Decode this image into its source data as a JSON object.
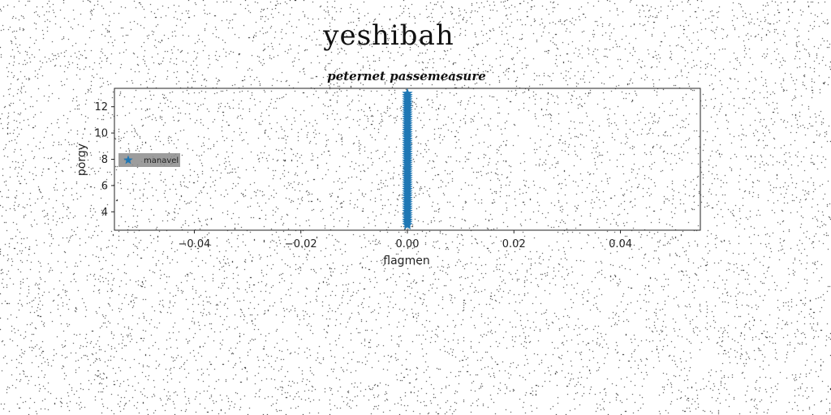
{
  "figure": {
    "suptitle": "yeshibah"
  },
  "chart_data": {
    "type": "scatter",
    "title": "peternet passemeasure",
    "xlabel": "flagmen",
    "ylabel": "porgy",
    "xlim": [
      -0.055,
      0.055
    ],
    "ylim": [
      2.6,
      13.4
    ],
    "xticks": [
      -0.04,
      -0.02,
      0.0,
      0.02,
      0.04
    ],
    "xtick_labels": [
      "−0.04",
      "−0.02",
      "0.00",
      "0.02",
      "0.04"
    ],
    "yticks": [
      4,
      6,
      8,
      10,
      12
    ],
    "ytick_labels": [
      "4",
      "6",
      "8",
      "10",
      "12"
    ],
    "grid": false,
    "legend_position": "center-left",
    "marker": "star",
    "series": [
      {
        "name": "manavel",
        "color": "#1f77b4",
        "x": [
          0,
          0,
          0,
          0,
          0,
          0,
          0,
          0,
          0,
          0,
          0,
          0,
          0,
          0,
          0,
          0,
          0,
          0,
          0,
          0,
          0,
          0,
          0,
          0,
          0,
          0,
          0,
          0,
          0,
          0,
          0,
          0,
          0,
          0,
          0,
          0,
          0,
          0,
          0,
          0,
          0,
          0,
          0,
          0,
          0,
          0,
          0,
          0,
          0,
          0,
          0,
          0,
          0,
          0,
          0,
          0,
          0,
          0,
          0,
          0,
          0
        ],
        "y": [
          3.0,
          3.17,
          3.33,
          3.5,
          3.67,
          3.83,
          4.0,
          4.17,
          4.33,
          4.5,
          4.67,
          4.83,
          5.0,
          5.17,
          5.33,
          5.5,
          5.67,
          5.83,
          6.0,
          6.17,
          6.33,
          6.5,
          6.67,
          6.83,
          7.0,
          7.17,
          7.33,
          7.5,
          7.67,
          7.83,
          8.0,
          8.17,
          8.33,
          8.5,
          8.67,
          8.83,
          9.0,
          9.17,
          9.33,
          9.5,
          9.67,
          9.83,
          10.0,
          10.17,
          10.33,
          10.5,
          10.67,
          10.83,
          11.0,
          11.17,
          11.33,
          11.5,
          11.67,
          11.83,
          12.0,
          12.17,
          12.33,
          12.5,
          12.67,
          12.83,
          13.0
        ]
      }
    ]
  }
}
